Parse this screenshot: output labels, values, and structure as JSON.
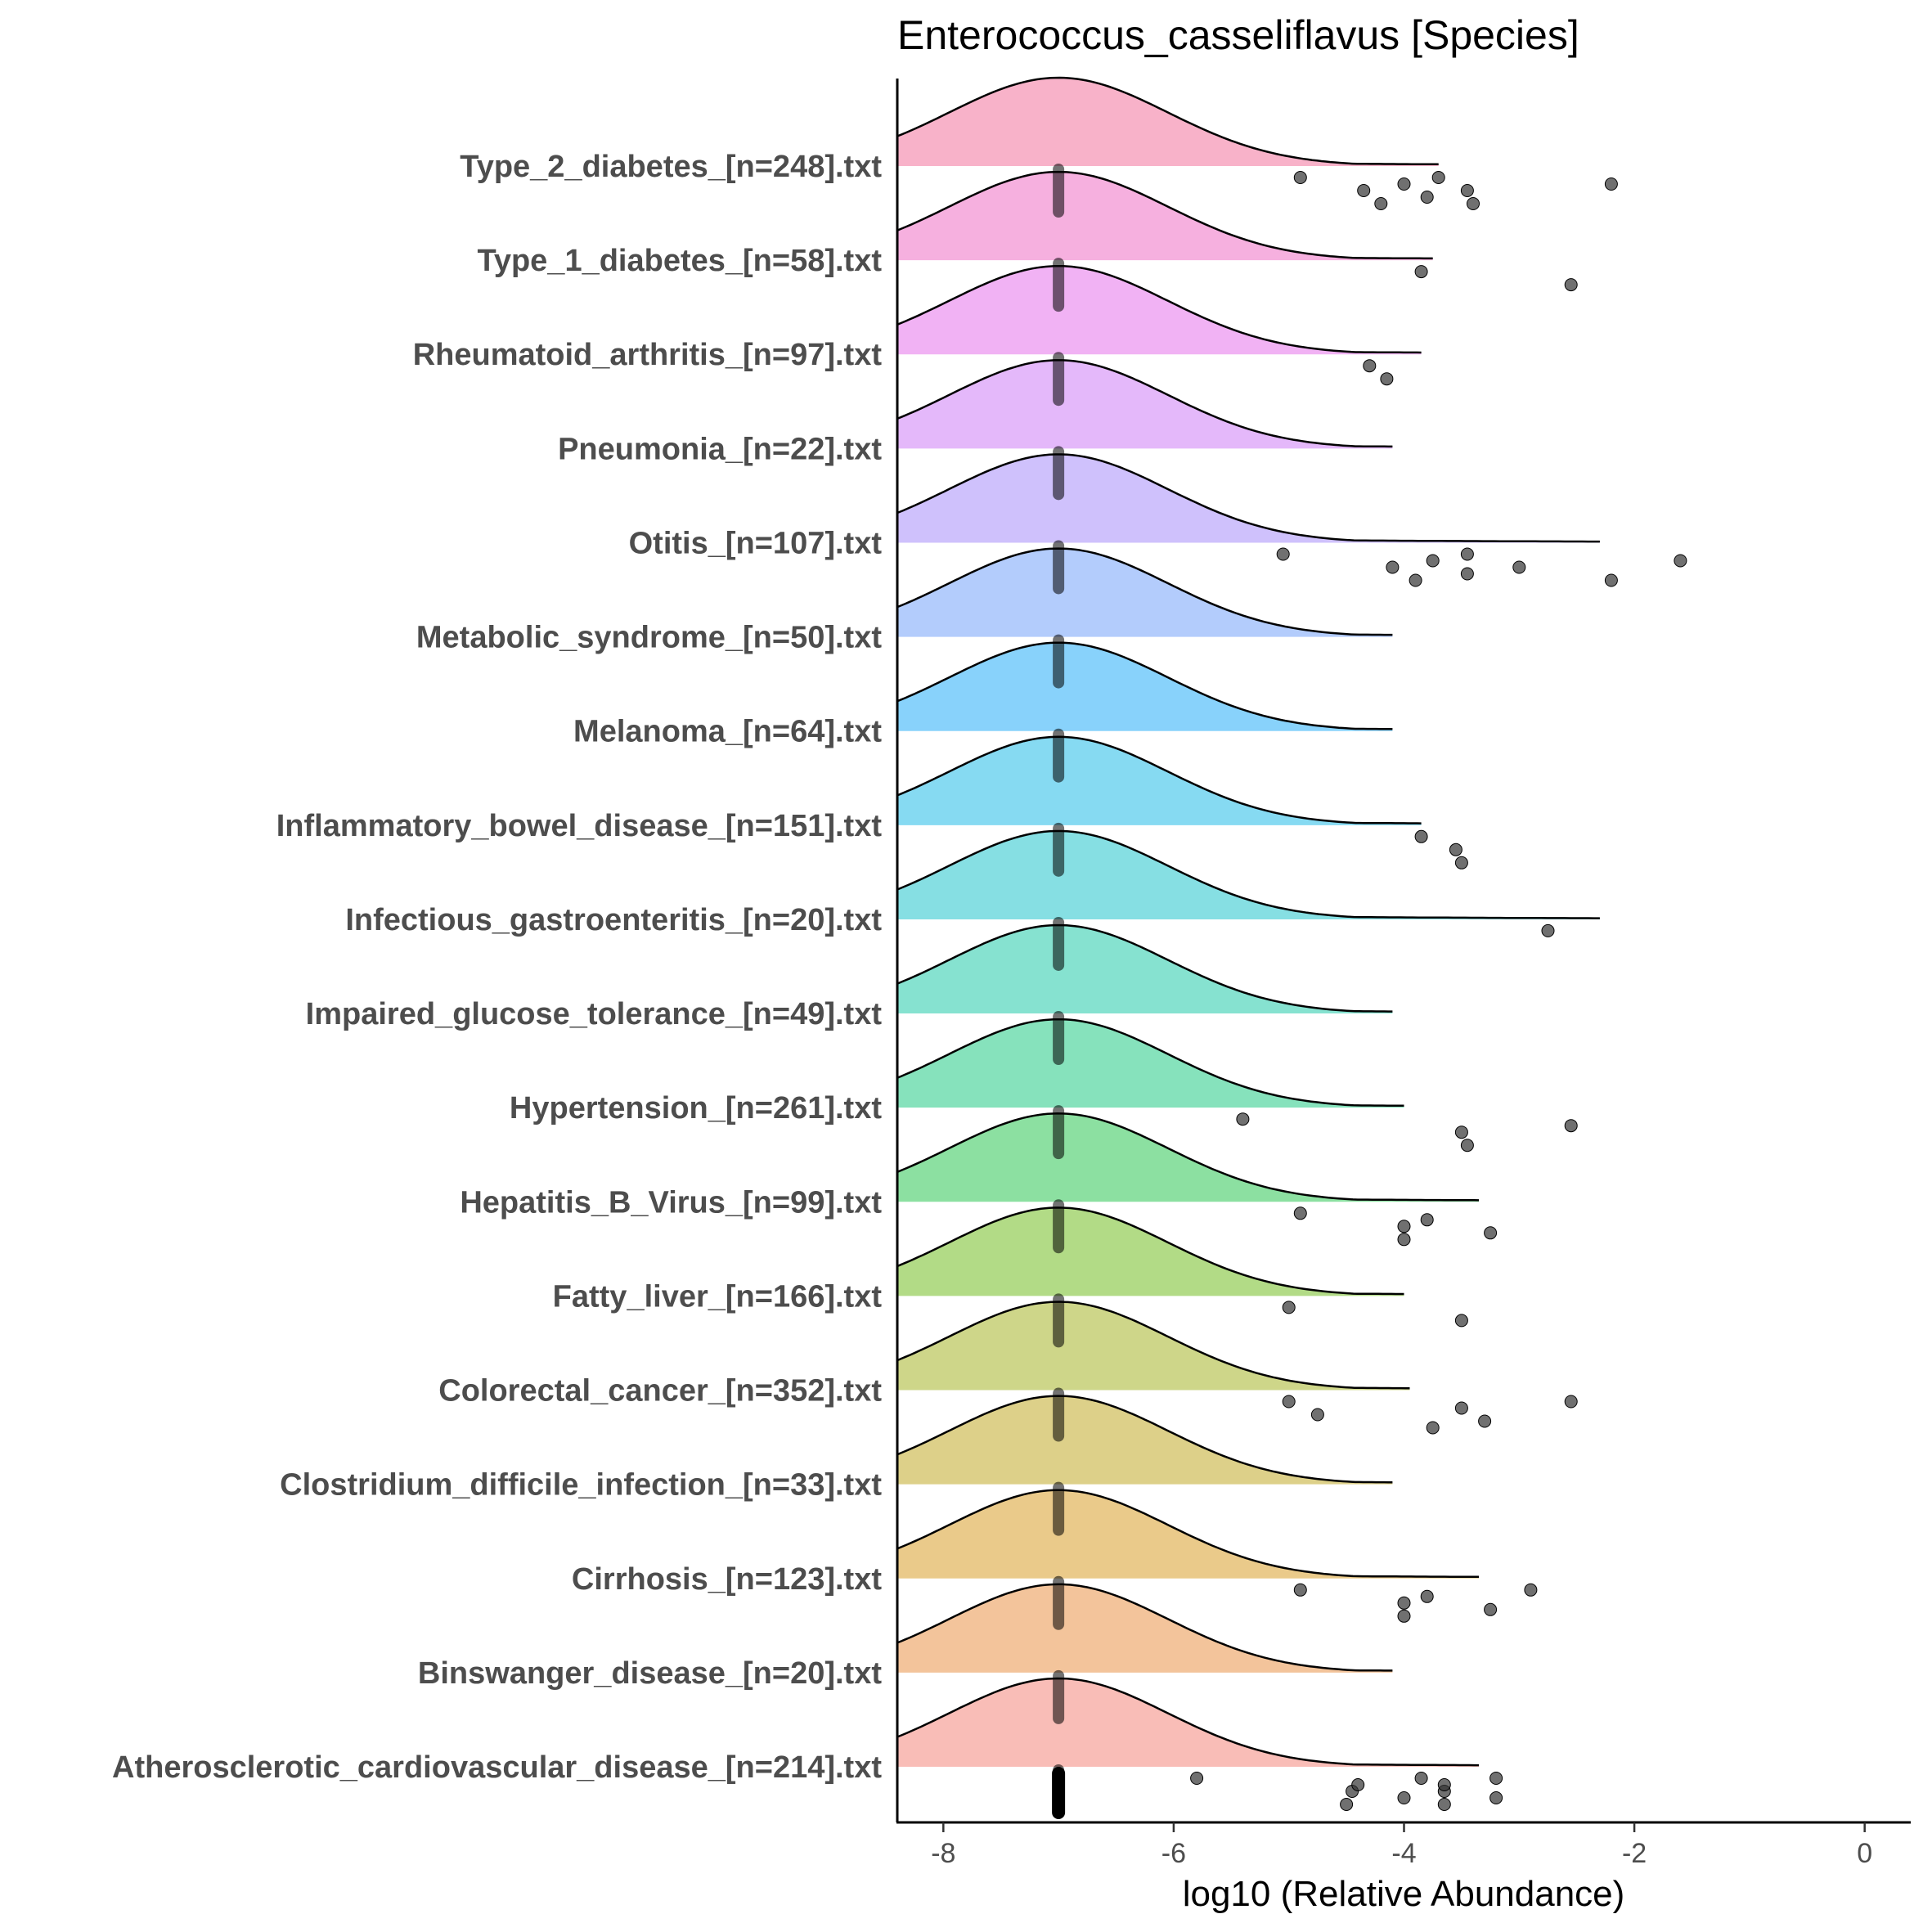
{
  "chart_data": {
    "type": "ridgeline",
    "title": "Enterococcus_casseliflavus [Species]",
    "xlabel": "log10 (Relative Abundance)",
    "ylabel": "",
    "xlim": [
      -8.4,
      0.4
    ],
    "xticks": [
      -8,
      -6,
      -4,
      -2,
      0
    ],
    "xtick_labels": [
      "-8",
      "-6",
      "-4",
      "-2",
      "0"
    ],
    "grid": false,
    "legend": "none",
    "point_color": "#333333",
    "median_value": -7,
    "series": [
      {
        "name": "Type_2_diabetes_[n=248].txt",
        "color": "#F8AEC6",
        "peak": -7.0,
        "end": -3.7,
        "outliers": [
          -4.9,
          -4.35,
          -4.2,
          -4.0,
          -3.8,
          -3.7,
          -3.45,
          -3.4,
          -2.2
        ]
      },
      {
        "name": "Type_1_diabetes_[n=58].txt",
        "color": "#F6ACDD",
        "peak": -7.0,
        "end": -3.75,
        "outliers": [
          -3.85,
          -2.55
        ]
      },
      {
        "name": "Rheumatoid_arthritis_[n=97].txt",
        "color": "#F0AEF3",
        "peak": -7.0,
        "end": -3.85,
        "outliers": [
          -4.3,
          -4.15
        ]
      },
      {
        "name": "Pneumonia_[n=22].txt",
        "color": "#E3B4FA",
        "peak": -7.0,
        "end": -4.1,
        "outliers": []
      },
      {
        "name": "Otitis_[n=107].txt",
        "color": "#CCBEFC",
        "peak": -7.0,
        "end": -2.3,
        "outliers": [
          -5.05,
          -4.1,
          -3.9,
          -3.75,
          -3.45,
          -3.45,
          -3.0,
          -2.2,
          -1.6
        ]
      },
      {
        "name": "Metabolic_syndrome_[n=50].txt",
        "color": "#AFC9FC",
        "peak": -7.0,
        "end": -4.1,
        "outliers": []
      },
      {
        "name": "Melanoma_[n=64].txt",
        "color": "#82D0FB",
        "peak": -7.0,
        "end": -4.1,
        "outliers": []
      },
      {
        "name": "Inflammatory_bowel_disease_[n=151].txt",
        "color": "#7FD8F1",
        "peak": -7.0,
        "end": -3.85,
        "outliers": [
          -3.85,
          -3.55,
          -3.5
        ]
      },
      {
        "name": "Infectious_gastroenteritis_[n=20].txt",
        "color": "#80DDE2",
        "peak": -7.0,
        "end": -2.3,
        "outliers": [
          -2.75
        ]
      },
      {
        "name": "Impaired_glucose_tolerance_[n=49].txt",
        "color": "#80E0CE",
        "peak": -7.0,
        "end": -4.1,
        "outliers": []
      },
      {
        "name": "Hypertension_[n=261].txt",
        "color": "#80E0B8",
        "peak": -7.0,
        "end": -4.0,
        "outliers": [
          -5.4,
          -3.5,
          -3.45,
          -2.55
        ]
      },
      {
        "name": "Hepatitis_B_Virus_[n=99].txt",
        "color": "#86DE9C",
        "peak": -7.0,
        "end": -3.35,
        "outliers": [
          -4.9,
          -4.0,
          -4.0,
          -3.8,
          -3.25
        ]
      },
      {
        "name": "Fatty_liver_[n=166].txt",
        "color": "#AED980",
        "peak": -7.0,
        "end": -4.0,
        "outliers": [
          -5.0,
          -3.5
        ]
      },
      {
        "name": "Colorectal_cancer_[n=352].txt",
        "color": "#CBD483",
        "peak": -7.0,
        "end": -3.95,
        "outliers": [
          -5.0,
          -4.75,
          -3.75,
          -3.5,
          -3.3,
          -2.55
        ]
      },
      {
        "name": "Clostridium_difficile_infection_[n=33].txt",
        "color": "#DBCE83",
        "peak": -7.0,
        "end": -4.1,
        "outliers": []
      },
      {
        "name": "Cirrhosis_[n=123].txt",
        "color": "#E9C784",
        "peak": -7.0,
        "end": -3.35,
        "outliers": [
          -4.9,
          -4.0,
          -4.0,
          -3.8,
          -3.25,
          -2.9
        ]
      },
      {
        "name": "Binswanger_disease_[n=20].txt",
        "color": "#F2C196",
        "peak": -7.0,
        "end": -4.1,
        "outliers": []
      },
      {
        "name": "Atherosclerotic_cardiovascular_disease_[n=214].txt",
        "color": "#F9B9B3",
        "peak": -7.0,
        "end": -3.35,
        "outliers": [
          -5.8,
          -4.45,
          -4.5,
          -4.4,
          -4.0,
          -3.85,
          -3.65,
          -3.65,
          -3.65,
          -3.2,
          -3.2
        ]
      }
    ]
  }
}
